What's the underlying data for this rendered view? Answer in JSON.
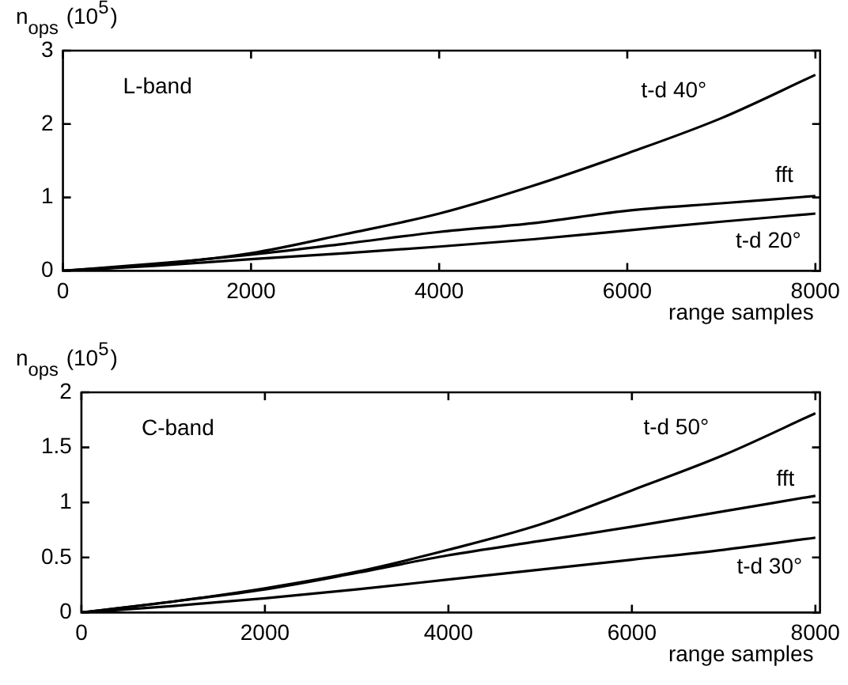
{
  "chart_data": [
    {
      "type": "line",
      "xlabel": "range samples",
      "ylabel": "n$_{ops}$ (10$^{5}$)",
      "annotations": [
        "L-band"
      ],
      "x": [
        0,
        1000,
        2000,
        3000,
        4000,
        5000,
        6000,
        7000,
        8000
      ],
      "xlim": [
        0,
        8050
      ],
      "xticks": [
        0,
        2000,
        4000,
        6000,
        8000
      ],
      "ylim": [
        0,
        3
      ],
      "yticks": [
        0,
        1,
        2,
        3
      ],
      "grid": false,
      "legend": "right",
      "marker": "none",
      "line_style": "solid",
      "series": [
        {
          "name": "t-d 40°",
          "color": "#000000",
          "values": [
            0,
            0.09,
            0.24,
            0.5,
            0.78,
            1.16,
            1.6,
            2.08,
            2.67
          ]
        },
        {
          "name": "fft",
          "color": "#000000",
          "values": [
            0,
            0.1,
            0.22,
            0.37,
            0.53,
            0.65,
            0.82,
            0.92,
            1.02
          ]
        },
        {
          "name": "t-d 20°",
          "color": "#000000",
          "values": [
            0,
            0.07,
            0.16,
            0.24,
            0.33,
            0.43,
            0.55,
            0.67,
            0.78
          ]
        }
      ]
    },
    {
      "type": "line",
      "xlabel": "range samples",
      "ylabel": "n$_{ops}$ (10$^{5}$)",
      "annotations": [
        "C-band"
      ],
      "x": [
        0,
        1000,
        2000,
        3000,
        4000,
        5000,
        6000,
        7000,
        8000
      ],
      "xlim": [
        0,
        8050
      ],
      "xticks": [
        0,
        2000,
        4000,
        6000,
        8000
      ],
      "ylim": [
        0,
        2
      ],
      "yticks": [
        0,
        0.5,
        1,
        1.5,
        2
      ],
      "grid": false,
      "legend": "right",
      "marker": "none",
      "line_style": "solid",
      "series": [
        {
          "name": "t-d 50°",
          "color": "#000000",
          "values": [
            0,
            0.1,
            0.22,
            0.37,
            0.57,
            0.8,
            1.11,
            1.43,
            1.81
          ]
        },
        {
          "name": "fft",
          "color": "#000000",
          "values": [
            0,
            0.1,
            0.21,
            0.36,
            0.52,
            0.65,
            0.78,
            0.92,
            1.06
          ]
        },
        {
          "name": "t-d 30°",
          "color": "#000000",
          "values": [
            0,
            0.06,
            0.13,
            0.21,
            0.3,
            0.39,
            0.48,
            0.57,
            0.68
          ]
        }
      ]
    }
  ]
}
